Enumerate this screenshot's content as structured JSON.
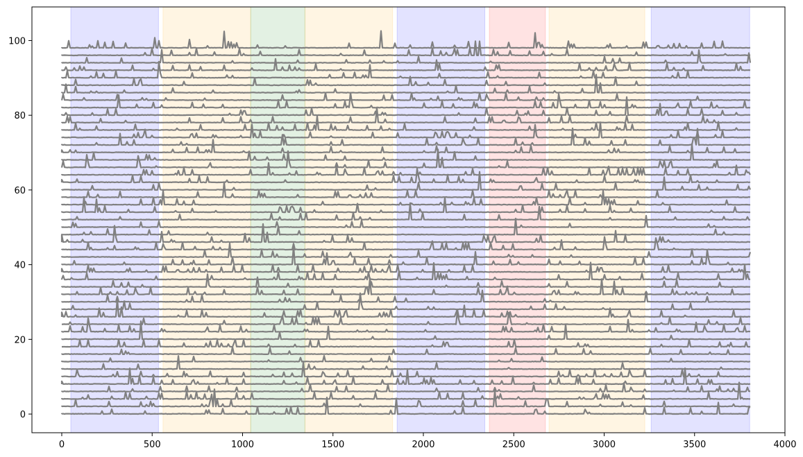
{
  "chart_data": {
    "type": "line",
    "title": "",
    "xlabel": "",
    "ylabel": "",
    "xlim": [
      -165,
      4000
    ],
    "ylim": [
      -5,
      109
    ],
    "x_ticks": [
      {
        "value": 0,
        "label": "0"
      },
      {
        "value": 500,
        "label": "500"
      },
      {
        "value": 1000,
        "label": "1000"
      },
      {
        "value": 1500,
        "label": "1500"
      },
      {
        "value": 2000,
        "label": "2000"
      },
      {
        "value": 2500,
        "label": "2500"
      },
      {
        "value": 3000,
        "label": "3000"
      },
      {
        "value": 3500,
        "label": "3500"
      },
      {
        "value": 4000,
        "label": "4000"
      }
    ],
    "y_ticks": [
      {
        "value": 0,
        "label": "0"
      },
      {
        "value": 20,
        "label": "20"
      },
      {
        "value": 40,
        "label": "40"
      },
      {
        "value": 60,
        "label": "60"
      },
      {
        "value": 80,
        "label": "80"
      },
      {
        "value": 100,
        "label": "100"
      }
    ],
    "grid": false,
    "legend": "none",
    "trace_color": "#808080",
    "trace_count": 50,
    "trace_spacing": 2,
    "trace_x_range": [
      0,
      3810
    ],
    "bands": [
      {
        "x0": 50,
        "x1": 535,
        "color": "#0000ff",
        "alpha": 0.11
      },
      {
        "x0": 560,
        "x1": 1045,
        "color": "#ffa500",
        "alpha": 0.11
      },
      {
        "x0": 1045,
        "x1": 1345,
        "color": "#008000",
        "alpha": 0.11
      },
      {
        "x0": 1345,
        "x1": 1830,
        "color": "#ffa500",
        "alpha": 0.11
      },
      {
        "x0": 1855,
        "x1": 2340,
        "color": "#0000ff",
        "alpha": 0.11
      },
      {
        "x0": 2365,
        "x1": 2675,
        "color": "#ff0000",
        "alpha": 0.11
      },
      {
        "x0": 2695,
        "x1": 3225,
        "color": "#ffa500",
        "alpha": 0.11
      },
      {
        "x0": 3260,
        "x1": 3805,
        "color": "#0000ff",
        "alpha": 0.11
      }
    ]
  }
}
